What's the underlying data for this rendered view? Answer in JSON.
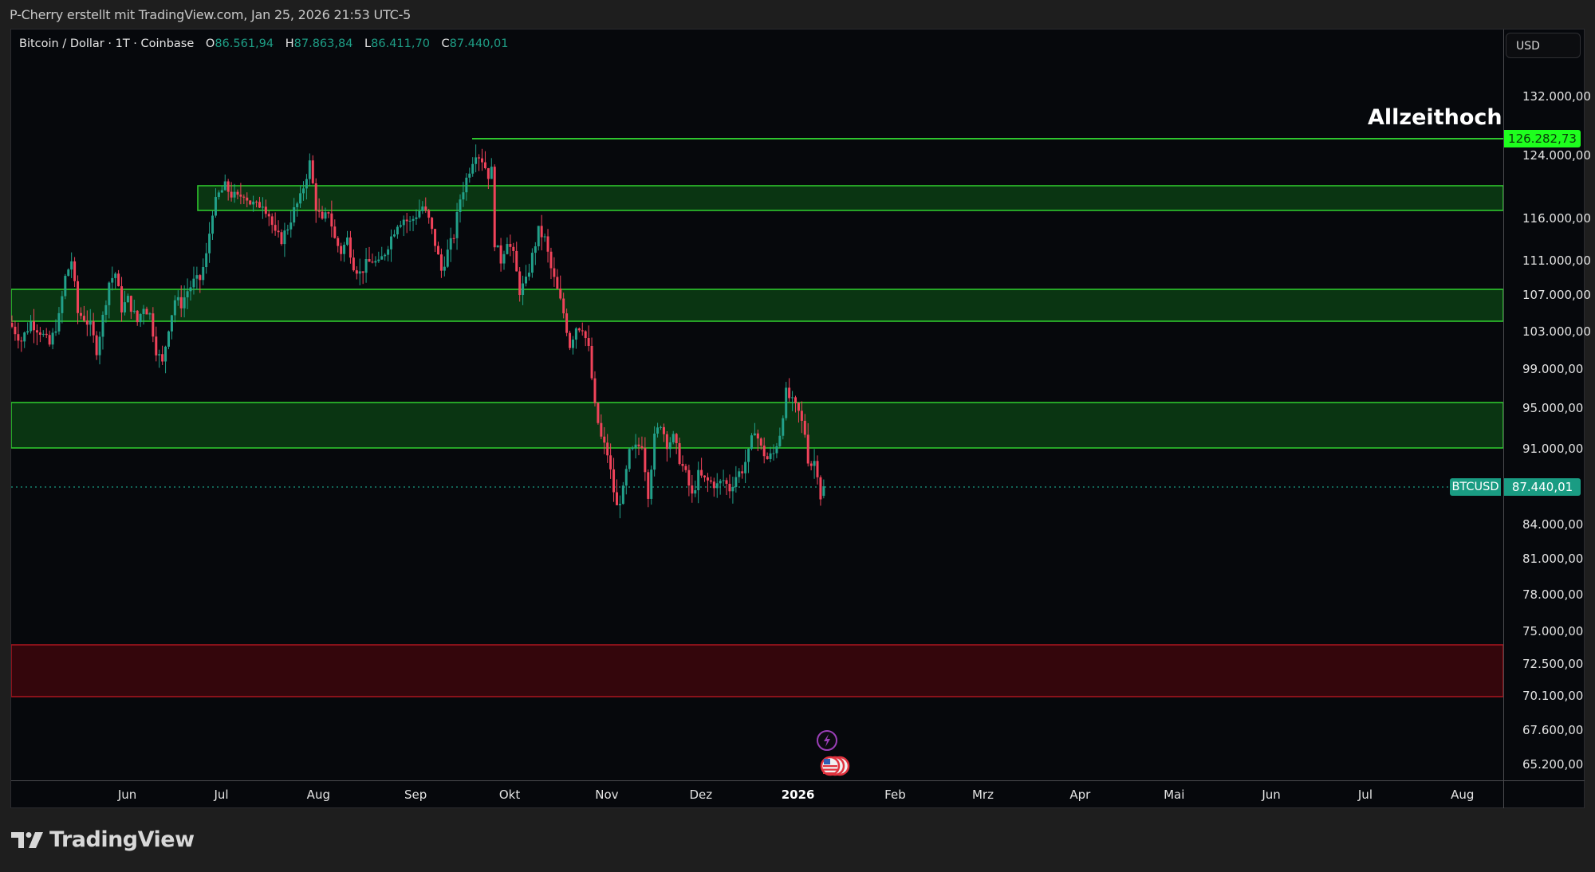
{
  "attribution": "P-Cherry erstellt mit TradingView.com, Jan 25, 2026 21:53 UTC-5",
  "legend": {
    "symbol": "Bitcoin / Dollar · 1T · Coinbase",
    "open_key": "O",
    "open": "86.561,94",
    "high_key": "H",
    "high": "87.863,84",
    "low_key": "L",
    "low": "86.411,70",
    "close_key": "C",
    "close": "87.440,01"
  },
  "currency_button": "USD",
  "annotation": "Allzeithoch",
  "labels": {
    "ath_price": "126.282,73",
    "last_symbol": "BTCUSD",
    "last_price": "87.440,01"
  },
  "brand": "TradingView",
  "colors": {
    "up": "#22a08a",
    "down": "#f0435a",
    "zone_green_fill": "#0a3512",
    "zone_green_line": "#2ec52e",
    "zone_red_fill": "#34060c",
    "zone_red_line": "#a4141e",
    "ath_line": "#2ec52e",
    "last_line": "#1a9c83"
  },
  "chart_data": {
    "type": "candlestick",
    "title": "Bitcoin / Dollar · 1T · Coinbase",
    "scale": "log",
    "xlabel": "",
    "ylabel": "USD",
    "ylim": [
      63500,
      137000
    ],
    "y_ticks": [
      "132.000,00",
      "124.000,00",
      "116.000,00",
      "111.000,00",
      "107.000,00",
      "103.000,00",
      "99.000,00",
      "95.000,00",
      "91.000,00",
      "84.000,00",
      "81.000,00",
      "78.000,00",
      "75.000,00",
      "72.500,00",
      "70.100,00",
      "67.600,00",
      "65.200,00"
    ],
    "y_tick_values": [
      132000,
      124000,
      116000,
      111000,
      107000,
      103000,
      99000,
      95000,
      91000,
      84000,
      81000,
      78000,
      75000,
      72500,
      70100,
      67600,
      65200
    ],
    "x_ticks": [
      {
        "label": "Jun",
        "day": 20,
        "year": false
      },
      {
        "label": "Jul",
        "day": 50,
        "year": false
      },
      {
        "label": "Aug",
        "day": 81,
        "year": false
      },
      {
        "label": "Sep",
        "day": 112,
        "year": false
      },
      {
        "label": "Okt",
        "day": 142,
        "year": false
      },
      {
        "label": "Nov",
        "day": 173,
        "year": false
      },
      {
        "label": "Dez",
        "day": 203,
        "year": false
      },
      {
        "label": "2026",
        "day": 234,
        "year": true
      },
      {
        "label": "Feb",
        "day": 265,
        "year": false
      },
      {
        "label": "Mrz",
        "day": 293,
        "year": false
      },
      {
        "label": "Apr",
        "day": 324,
        "year": false
      },
      {
        "label": "Mai",
        "day": 354,
        "year": false
      },
      {
        "label": "Jun",
        "day": 385,
        "year": false
      },
      {
        "label": "Jul",
        "day": 415,
        "year": false
      },
      {
        "label": "Aug",
        "day": 446,
        "year": false
      }
    ],
    "x_start_date": "2025-05-12",
    "close_waypoints": [
      [
        0,
        103500
      ],
      [
        3,
        102000
      ],
      [
        6,
        104000
      ],
      [
        9,
        103000
      ],
      [
        12,
        101500
      ],
      [
        15,
        104500
      ],
      [
        17,
        109000
      ],
      [
        19,
        111000
      ],
      [
        21,
        105000
      ],
      [
        23,
        104500
      ],
      [
        25,
        103500
      ],
      [
        27,
        101000
      ],
      [
        29,
        104500
      ],
      [
        31,
        108500
      ],
      [
        33,
        109500
      ],
      [
        35,
        105500
      ],
      [
        37,
        106500
      ],
      [
        40,
        104000
      ],
      [
        42,
        105800
      ],
      [
        44,
        104800
      ],
      [
        46,
        101000
      ],
      [
        48,
        99500
      ],
      [
        50,
        103500
      ],
      [
        52,
        106500
      ],
      [
        54,
        106000
      ],
      [
        56,
        107500
      ],
      [
        58,
        108500
      ],
      [
        60,
        108800
      ],
      [
        62,
        111500
      ],
      [
        64,
        117000
      ],
      [
        66,
        119000
      ],
      [
        68,
        120000
      ],
      [
        70,
        119000
      ],
      [
        72,
        118500
      ],
      [
        74,
        119200
      ],
      [
        76,
        118000
      ],
      [
        78,
        117500
      ],
      [
        80,
        118000
      ],
      [
        82,
        116500
      ],
      [
        84,
        114000
      ],
      [
        86,
        113500
      ],
      [
        88,
        115000
      ],
      [
        90,
        117000
      ],
      [
        92,
        118500
      ],
      [
        94,
        121500
      ],
      [
        95,
        123000
      ],
      [
        97,
        117500
      ],
      [
        99,
        115500
      ],
      [
        101,
        117000
      ],
      [
        103,
        113500
      ],
      [
        105,
        112000
      ],
      [
        107,
        113500
      ],
      [
        109,
        110500
      ],
      [
        111,
        109500
      ],
      [
        113,
        110500
      ],
      [
        115,
        111000
      ],
      [
        117,
        110500
      ],
      [
        119,
        112000
      ],
      [
        121,
        113800
      ],
      [
        123,
        115500
      ],
      [
        125,
        116000
      ],
      [
        127,
        115500
      ],
      [
        129,
        116500
      ],
      [
        131,
        117500
      ],
      [
        133,
        115800
      ],
      [
        135,
        113000
      ],
      [
        137,
        109800
      ],
      [
        139,
        112000
      ],
      [
        141,
        114000
      ],
      [
        143,
        118500
      ],
      [
        145,
        121000
      ],
      [
        147,
        123500
      ],
      [
        148,
        124500
      ],
      [
        150,
        123500
      ],
      [
        152,
        121500
      ],
      [
        153,
        122000
      ],
      [
        154,
        113200
      ],
      [
        156,
        111000
      ],
      [
        158,
        113500
      ],
      [
        160,
        111500
      ],
      [
        162,
        107500
      ],
      [
        164,
        108500
      ],
      [
        166,
        111500
      ],
      [
        168,
        114500
      ],
      [
        170,
        113500
      ],
      [
        172,
        110000
      ],
      [
        174,
        107500
      ],
      [
        176,
        105000
      ],
      [
        178,
        101500
      ],
      [
        180,
        103500
      ],
      [
        182,
        103500
      ],
      [
        184,
        101000
      ],
      [
        186,
        95000
      ],
      [
        188,
        92000
      ],
      [
        190,
        90500
      ],
      [
        192,
        87000
      ],
      [
        193,
        85500
      ],
      [
        195,
        87000
      ],
      [
        197,
        90500
      ],
      [
        199,
        91000
      ],
      [
        201,
        91500
      ],
      [
        203,
        86800
      ],
      [
        205,
        92000
      ],
      [
        207,
        93500
      ],
      [
        209,
        91500
      ],
      [
        211,
        92000
      ],
      [
        213,
        90000
      ],
      [
        215,
        88500
      ],
      [
        217,
        86500
      ],
      [
        219,
        88500
      ],
      [
        221,
        88000
      ],
      [
        223,
        87800
      ],
      [
        225,
        87500
      ],
      [
        227,
        88000
      ],
      [
        229,
        87200
      ],
      [
        231,
        88400
      ],
      [
        233,
        89000
      ],
      [
        235,
        90500
      ],
      [
        237,
        93000
      ],
      [
        239,
        91000
      ],
      [
        241,
        90000
      ],
      [
        243,
        90500
      ],
      [
        245,
        92500
      ],
      [
        247,
        96500
      ],
      [
        249,
        95500
      ],
      [
        251,
        94500
      ],
      [
        253,
        92500
      ],
      [
        254,
        90000
      ],
      [
        255,
        89500
      ],
      [
        256,
        89800
      ],
      [
        257,
        88800
      ],
      [
        258,
        86500
      ],
      [
        259,
        87440
      ]
    ]
  }
}
